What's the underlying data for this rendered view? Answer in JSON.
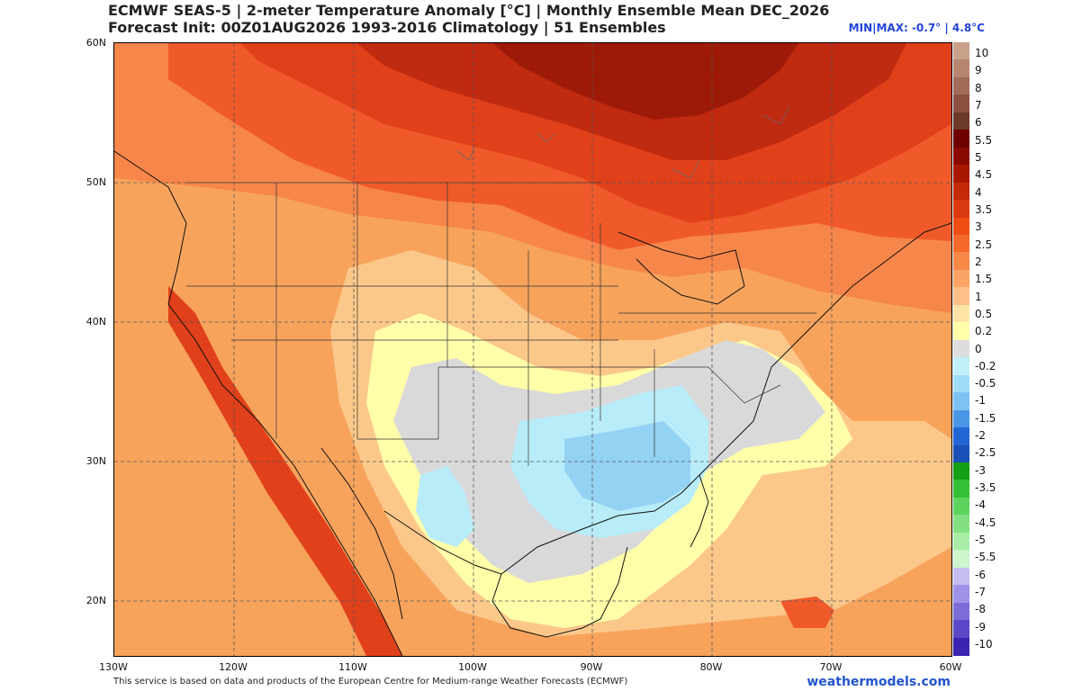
{
  "header": {
    "title_line1": "ECMWF SEAS-5 | 2-meter Temperature Anomaly [°C] | Monthly Ensemble Mean DEC_2026",
    "title_line2": "Forecast Init: 00Z01AUG2026     1993-2016 Climatology | 51 Ensembles",
    "minmax": "MIN|MAX: -0.7° | 4.8°C"
  },
  "map": {
    "lat_labels": [
      "60N",
      "50N",
      "40N",
      "30N",
      "20N"
    ],
    "lon_labels": [
      "130W",
      "120W",
      "110W",
      "100W",
      "90W",
      "80W",
      "70W",
      "60W"
    ],
    "colors": {
      "base": "#f7a35c",
      "warm_1": "#f7864a",
      "warm_2": "#f05a2a",
      "warm_3": "#e0401a",
      "warm_4": "#c02a10",
      "warm_5": "#9e1a08",
      "light_orange": "#fcc88a",
      "yellow": "#ffffaa",
      "gray": "#d9d9d9",
      "cyan_light": "#b8ecf8",
      "cyan": "#94d2f4"
    }
  },
  "colorbar": {
    "labels": [
      "10",
      "9",
      "8",
      "7",
      "6",
      "5.5",
      "5",
      "4.5",
      "4",
      "3.5",
      "3",
      "2.5",
      "2",
      "1.5",
      "1",
      "0.5",
      "0.2",
      "0",
      "-0.2",
      "-0.5",
      "-1",
      "-1.5",
      "-2",
      "-2.5",
      "-3",
      "-3.5",
      "-4",
      "-4.5",
      "-5",
      "-5.5",
      "-6",
      "-7",
      "-8",
      "-9",
      "-10"
    ],
    "colors": [
      "#c9a08a",
      "#b68570",
      "#a26a58",
      "#8c5040",
      "#6b3a2a",
      "#6e0000",
      "#8a0a00",
      "#a81800",
      "#c42a08",
      "#dc3a10",
      "#ee4e14",
      "#f56a2a",
      "#f88848",
      "#faa466",
      "#fcc088",
      "#fde4a6",
      "#ffffaa",
      "#dddddd",
      "#c2f0fa",
      "#a0dcf8",
      "#7ec2f2",
      "#4a96e6",
      "#2266d4",
      "#1a50b8",
      "#14a014",
      "#34c034",
      "#5cd45c",
      "#82e082",
      "#a8eca8",
      "#cdf6cd",
      "#c6bdf0",
      "#9e92e8",
      "#7c6cd8",
      "#5a48c8",
      "#3a24b0"
    ]
  },
  "footer": {
    "disclaimer": "This service is based on data and products of the European Centre for Medium-range Weather Forecasts (ECMWF)",
    "brand": "weathermodels.com"
  }
}
